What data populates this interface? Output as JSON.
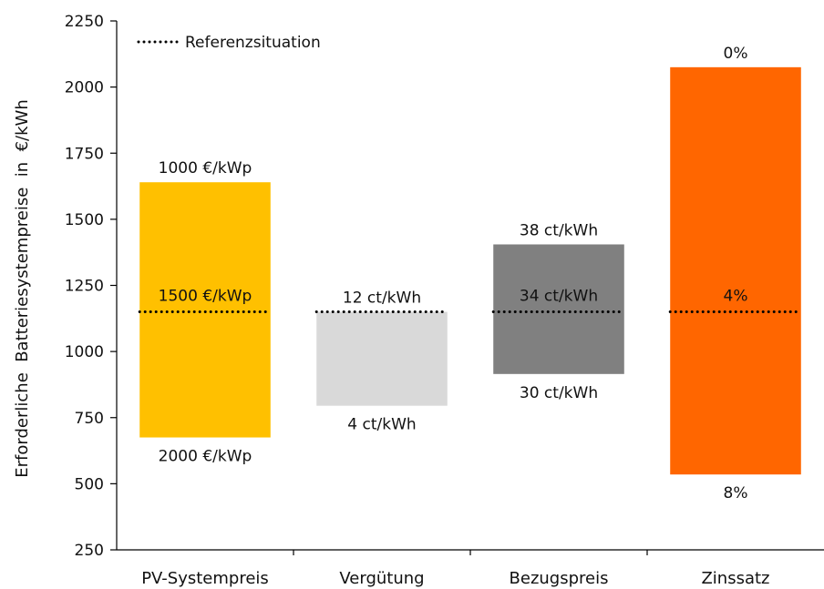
{
  "chart_data": {
    "type": "bar",
    "subtype": "floating-range",
    "ylabel": "Erforderliche  Batteriesystempreise  in  €/kWh",
    "ylim": [
      250,
      2250
    ],
    "yticks": [
      250,
      500,
      750,
      1000,
      1250,
      1500,
      1750,
      2000,
      2250
    ],
    "grid": false,
    "legend_position": "top-left",
    "reference": {
      "label": "Referenzsituation",
      "value": 1150,
      "style": "dotted"
    },
    "categories": [
      "PV-Systempreis",
      "Vergütung",
      "Bezugspreis",
      "Zinssatz"
    ],
    "bars": [
      {
        "category": "PV-Systempreis",
        "low": 675,
        "high": 1640,
        "color": "#FFC000",
        "label_top": "1000 €/kWp",
        "label_ref": "1500 €/kWp",
        "label_bottom": "2000 €/kWp"
      },
      {
        "category": "Vergütung",
        "low": 795,
        "high": 1150,
        "color": "#D9D9D9",
        "label_top": "12 ct/kWh",
        "label_ref": "",
        "label_bottom": "4 ct/kWh"
      },
      {
        "category": "Bezugspreis",
        "low": 915,
        "high": 1405,
        "color": "#808080",
        "label_top": "38 ct/kWh",
        "label_ref": "34 ct/kWh",
        "label_bottom": "30 ct/kWh"
      },
      {
        "category": "Zinssatz",
        "low": 535,
        "high": 2075,
        "color": "#FF6600",
        "label_top": "0%",
        "label_ref": "4%",
        "label_bottom": "8%"
      }
    ]
  }
}
